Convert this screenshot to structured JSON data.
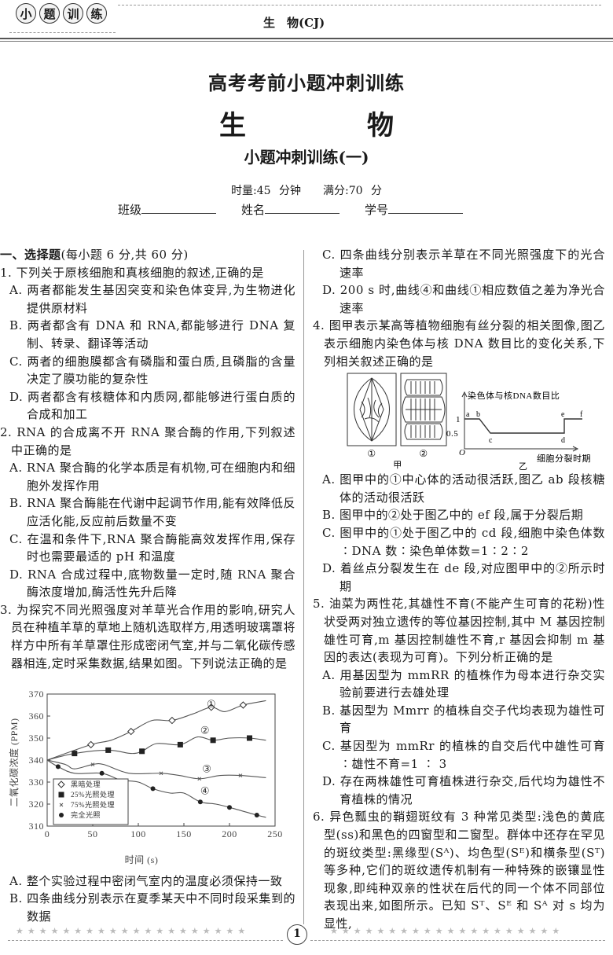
{
  "header": {
    "logo_chars": [
      "小",
      "题",
      "训",
      "练"
    ],
    "subject": "生　物(CJ)"
  },
  "title": {
    "main": "高考考前小题冲刺训练",
    "subject": "生　物",
    "sub": "小题冲刺训练(一)",
    "meta": "时量:45 分钟　　满分:70 分",
    "fields": [
      "班级",
      "姓名",
      "学号"
    ]
  },
  "left": {
    "section": "一、选择题",
    "section_note": "(每小题 6 分,共 60 分)",
    "q1": {
      "stem": "1. 下列关于原核细胞和真核细胞的叙述,正确的是",
      "options": [
        "A. 两者都能发生基因突变和染色体变异,为生物进化提供原材料",
        "B. 两者都含有 DNA 和 RNA,都能够进行 DNA 复制、转录、翻译等活动",
        "C. 两者的细胞膜都含有磷脂和蛋白质,且磷脂的含量决定了膜功能的复杂性",
        "D. 两者都含有核糖体和内质网,都能够进行蛋白质的合成和加工"
      ]
    },
    "q2": {
      "stem": "2. RNA 的合成离不开 RNA 聚合酶的作用,下列叙述中正确的是",
      "options": [
        "A. RNA 聚合酶的化学本质是有机物,可在细胞内和细胞外发挥作用",
        "B. RNA 聚合酶能在代谢中起调节作用,能有效降低反应活化能,反应前后数量不变",
        "C. 在温和条件下,RNA 聚合酶能高效发挥作用,保存时也需要最适的 pH 和温度",
        "D. RNA 合成过程中,底物数量一定时,随 RNA 聚合酶浓度增加,酶活性先升后降"
      ]
    },
    "q3": {
      "stem": "3. 为探究不同光照强度对羊草光合作用的影响,研究人员在种植羊草的草地上随机选取样方,用透明玻璃罩将样方中所有羊草罩住形成密闭气室,并与二氧化碳传感器相连,定时采集数据,结果如图。下列说法正确的是",
      "options": [
        "A. 整个实验过程中密闭气室内的温度必须保持一致",
        "B. 四条曲线分别表示在夏季某天中不同时段采集到的数据"
      ]
    }
  },
  "chart_data": {
    "type": "line",
    "xlabel": "时间 (s)",
    "ylabel": "二氧化碳浓度 (PPM)",
    "xlim": [
      0,
      250
    ],
    "ylim": [
      310,
      370
    ],
    "xticks": [
      "0",
      "50",
      "100",
      "150",
      "200",
      "250"
    ],
    "yticks": [
      "310",
      "320",
      "330",
      "340",
      "350",
      "360",
      "370"
    ],
    "legend_position": "bottom-left",
    "series": [
      {
        "name": "黑暗处理",
        "label": "①",
        "marker": "diamond-open",
        "curve": [
          [
            0,
            340
          ],
          [
            48,
            347
          ],
          [
            70,
            349
          ],
          [
            92,
            353
          ],
          [
            115,
            358
          ],
          [
            137,
            358
          ],
          [
            160,
            361
          ],
          [
            180,
            364
          ],
          [
            195,
            362
          ],
          [
            215,
            365
          ],
          [
            240,
            367
          ]
        ],
        "markers": [
          [
            48,
            347
          ],
          [
            92,
            353
          ],
          [
            137,
            358
          ],
          [
            180,
            364
          ],
          [
            215,
            365
          ]
        ]
      },
      {
        "name": "25%光照处理",
        "label": "②",
        "marker": "square",
        "curve": [
          [
            0,
            340
          ],
          [
            30,
            343
          ],
          [
            67,
            344.5
          ],
          [
            92,
            343
          ],
          [
            104,
            344
          ],
          [
            120,
            347.5
          ],
          [
            146,
            347
          ],
          [
            165,
            350.5
          ],
          [
            182,
            349
          ],
          [
            200,
            350
          ],
          [
            222,
            350
          ],
          [
            240,
            349
          ]
        ],
        "markers": [
          [
            30,
            343
          ],
          [
            67,
            344.5
          ],
          [
            104,
            344
          ],
          [
            146,
            347
          ],
          [
            182,
            349
          ],
          [
            222,
            350
          ]
        ]
      },
      {
        "name": "75%光照处理",
        "label": "③",
        "marker": "x",
        "curve": [
          [
            0,
            340
          ],
          [
            20,
            338
          ],
          [
            30,
            336
          ],
          [
            50,
            338
          ],
          [
            62,
            338
          ],
          [
            90,
            334
          ],
          [
            125,
            334
          ],
          [
            145,
            333
          ],
          [
            167,
            331.5
          ],
          [
            190,
            333
          ],
          [
            212,
            333
          ],
          [
            240,
            332
          ]
        ],
        "markers": [
          [
            50,
            338
          ],
          [
            125,
            334
          ],
          [
            167,
            331.5
          ],
          [
            212,
            333
          ]
        ]
      },
      {
        "name": "完全光照",
        "label": "④",
        "marker": "circle",
        "curve": [
          [
            0,
            340
          ],
          [
            12,
            337
          ],
          [
            30,
            334
          ],
          [
            60,
            334
          ],
          [
            80,
            331
          ],
          [
            100,
            330
          ],
          [
            116,
            327
          ],
          [
            135,
            325
          ],
          [
            150,
            325
          ],
          [
            168,
            321
          ],
          [
            185,
            320
          ],
          [
            200,
            318.5
          ],
          [
            230,
            315
          ],
          [
            240,
            314
          ]
        ],
        "markers": [
          [
            12,
            337
          ],
          [
            60,
            334
          ],
          [
            116,
            327
          ],
          [
            168,
            321
          ],
          [
            200,
            318.5
          ],
          [
            230,
            315
          ]
        ]
      }
    ]
  },
  "right": {
    "q3_options": [
      "C. 四条曲线分别表示羊草在不同光照强度下的光合速率",
      "D. 200 s 时,曲线④和曲线①相应数值之差为净光合速率"
    ],
    "q4": {
      "stem": "4. 图甲表示某高等植物细胞有丝分裂的相关图像,图乙表示细胞内染色体与核 DNA 数目比的变化关系,下列相关叙述正确的是",
      "figure": {
        "cell1": "①",
        "cell2": "②",
        "label_jia": "甲",
        "label_yi": "乙",
        "ylabel": "染色体与核DNA数目比",
        "xlabel": "细胞分裂时期",
        "origin": "O",
        "y1": "1",
        "y05": "0.5",
        "points": [
          "a",
          "b",
          "c",
          "d",
          "e",
          "f"
        ]
      },
      "options": [
        "A. 图甲中的①中心体的活动很活跃,图乙 ab 段核糖体的活动很活跃",
        "B. 图甲中的②处于图乙中的 ef 段,属于分裂后期",
        "C. 图甲中的①处于图乙中的 cd 段,细胞中染色体数∶DNA 数∶染色单体数=1∶2∶2",
        "D. 着丝点分裂发生在 de 段,对应图甲中的②所示时期"
      ]
    },
    "q5": {
      "stem": "5. 油菜为两性花,其雄性不育(不能产生可育的花粉)性状受两对独立遗传的等位基因控制,其中 M 基因控制雄性可育,m 基因控制雄性不育,r 基因会抑制 m 基因的表达(表现为可育)。下列分析正确的是",
      "options": [
        "A. 用基因型为 mmRR 的植株作为母本进行杂交实验前要进行去雄处理",
        "B. 基因型为 Mmrr 的植株自交子代均表现为雄性可育",
        "C. 基因型为 mmRr 的植株的自交后代中雄性可育∶雄性不育=1 ∶ 3",
        "D. 存在两株雄性可育植株进行杂交,后代均为雄性不育植株的情况"
      ]
    },
    "q6": {
      "stem": "6. 异色瓢虫的鞘翅斑纹有 3 种常见类型:浅色的黄底型(ss)和黑色的四窗型和二窗型。群体中还存在罕见的斑纹类型:黑缘型(Sᴬ)、均色型(Sᴱ)和横条型(Sᵀ)等多种,它们的斑纹遗传机制有一种特殊的嵌镶显性现象,即纯种双亲的性状在后代的同一个体不同部位表现出来,如图所示。已知 Sᵀ、Sᴱ 和 Sᴬ 对 s 均为显性,"
    }
  },
  "footer": {
    "page": "1"
  }
}
